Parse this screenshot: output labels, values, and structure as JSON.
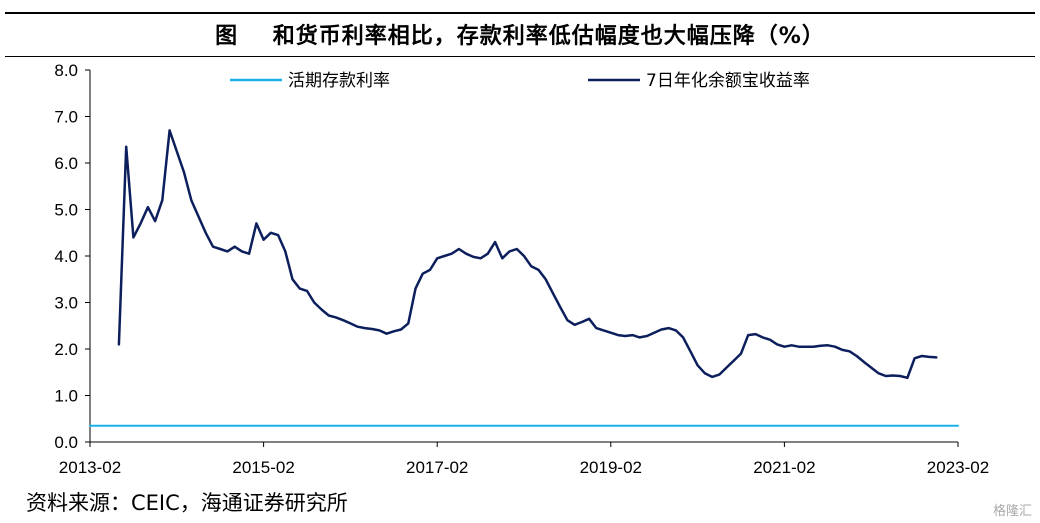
{
  "title": "图    和货币利率相比，存款利率低估幅度也大幅压降（%）",
  "source": "资料来源：CEIC，海通证券研究所",
  "watermark": "格隆汇",
  "chart_data": {
    "type": "line",
    "title": "图    和货币利率相比，存款利率低估幅度也大幅压降（%）",
    "xlabel": "",
    "ylabel": "",
    "ylim": [
      0,
      8
    ],
    "yticks": [
      "0.0",
      "1.0",
      "2.0",
      "3.0",
      "4.0",
      "5.0",
      "6.0",
      "7.0",
      "8.0"
    ],
    "xlim": [
      "2013-02",
      "2023-02"
    ],
    "xticks": [
      "2013-02",
      "2015-02",
      "2017-02",
      "2019-02",
      "2021-02",
      "2023-02"
    ],
    "grid": false,
    "legend": "top",
    "series": [
      {
        "name": "活期存款利率",
        "color": "#1ab0e8",
        "points": [
          [
            "2013-02",
            0.35
          ],
          [
            "2023-02",
            0.35
          ]
        ]
      },
      {
        "name": "7日年化余额宝收益率",
        "color": "#0c1f5c",
        "points": [
          [
            "2013-06",
            2.1
          ],
          [
            "2013-07",
            6.35
          ],
          [
            "2013-08",
            4.4
          ],
          [
            "2013-09",
            4.7
          ],
          [
            "2013-10",
            5.05
          ],
          [
            "2013-11",
            4.75
          ],
          [
            "2013-12",
            5.2
          ],
          [
            "2014-01",
            6.7
          ],
          [
            "2014-02",
            6.25
          ],
          [
            "2014-03",
            5.8
          ],
          [
            "2014-04",
            5.2
          ],
          [
            "2014-05",
            4.85
          ],
          [
            "2014-06",
            4.5
          ],
          [
            "2014-07",
            4.2
          ],
          [
            "2014-08",
            4.15
          ],
          [
            "2014-09",
            4.1
          ],
          [
            "2014-10",
            4.2
          ],
          [
            "2014-11",
            4.1
          ],
          [
            "2014-12",
            4.05
          ],
          [
            "2015-01",
            4.7
          ],
          [
            "2015-02",
            4.35
          ],
          [
            "2015-03",
            4.5
          ],
          [
            "2015-04",
            4.45
          ],
          [
            "2015-05",
            4.1
          ],
          [
            "2015-06",
            3.5
          ],
          [
            "2015-07",
            3.3
          ],
          [
            "2015-08",
            3.25
          ],
          [
            "2015-09",
            3.0
          ],
          [
            "2015-10",
            2.85
          ],
          [
            "2015-11",
            2.72
          ],
          [
            "2015-12",
            2.68
          ],
          [
            "2016-01",
            2.62
          ],
          [
            "2016-02",
            2.55
          ],
          [
            "2016-03",
            2.48
          ],
          [
            "2016-04",
            2.45
          ],
          [
            "2016-05",
            2.43
          ],
          [
            "2016-06",
            2.4
          ],
          [
            "2016-07",
            2.33
          ],
          [
            "2016-08",
            2.38
          ],
          [
            "2016-09",
            2.42
          ],
          [
            "2016-10",
            2.55
          ],
          [
            "2016-11",
            3.3
          ],
          [
            "2016-12",
            3.62
          ],
          [
            "2017-01",
            3.7
          ],
          [
            "2017-02",
            3.95
          ],
          [
            "2017-03",
            4.0
          ],
          [
            "2017-04",
            4.05
          ],
          [
            "2017-05",
            4.15
          ],
          [
            "2017-06",
            4.05
          ],
          [
            "2017-07",
            3.98
          ],
          [
            "2017-08",
            3.95
          ],
          [
            "2017-09",
            4.05
          ],
          [
            "2017-10",
            4.3
          ],
          [
            "2017-11",
            3.95
          ],
          [
            "2017-12",
            4.1
          ],
          [
            "2018-01",
            4.15
          ],
          [
            "2018-02",
            4.0
          ],
          [
            "2018-03",
            3.78
          ],
          [
            "2018-04",
            3.7
          ],
          [
            "2018-05",
            3.5
          ],
          [
            "2018-06",
            3.2
          ],
          [
            "2018-07",
            2.9
          ],
          [
            "2018-08",
            2.62
          ],
          [
            "2018-09",
            2.52
          ],
          [
            "2018-10",
            2.58
          ],
          [
            "2018-11",
            2.65
          ],
          [
            "2018-12",
            2.45
          ],
          [
            "2019-01",
            2.4
          ],
          [
            "2019-02",
            2.35
          ],
          [
            "2019-03",
            2.3
          ],
          [
            "2019-04",
            2.28
          ],
          [
            "2019-05",
            2.3
          ],
          [
            "2019-06",
            2.25
          ],
          [
            "2019-07",
            2.28
          ],
          [
            "2019-08",
            2.35
          ],
          [
            "2019-09",
            2.42
          ],
          [
            "2019-10",
            2.45
          ],
          [
            "2019-11",
            2.4
          ],
          [
            "2019-12",
            2.25
          ],
          [
            "2020-01",
            1.95
          ],
          [
            "2020-02",
            1.65
          ],
          [
            "2020-03",
            1.48
          ],
          [
            "2020-04",
            1.4
          ],
          [
            "2020-05",
            1.45
          ],
          [
            "2020-06",
            1.6
          ],
          [
            "2020-07",
            1.75
          ],
          [
            "2020-08",
            1.9
          ],
          [
            "2020-09",
            2.3
          ],
          [
            "2020-10",
            2.32
          ],
          [
            "2020-11",
            2.25
          ],
          [
            "2020-12",
            2.2
          ],
          [
            "2021-01",
            2.1
          ],
          [
            "2021-02",
            2.05
          ],
          [
            "2021-03",
            2.08
          ],
          [
            "2021-04",
            2.05
          ],
          [
            "2021-05",
            2.05
          ],
          [
            "2021-06",
            2.05
          ],
          [
            "2021-07",
            2.07
          ],
          [
            "2021-08",
            2.08
          ],
          [
            "2021-09",
            2.05
          ],
          [
            "2021-10",
            1.98
          ],
          [
            "2021-11",
            1.95
          ],
          [
            "2021-12",
            1.85
          ],
          [
            "2022-01",
            1.72
          ],
          [
            "2022-02",
            1.6
          ],
          [
            "2022-03",
            1.48
          ],
          [
            "2022-04",
            1.42
          ],
          [
            "2022-05",
            1.43
          ],
          [
            "2022-06",
            1.42
          ],
          [
            "2022-07",
            1.38
          ],
          [
            "2022-08",
            1.8
          ],
          [
            "2022-09",
            1.85
          ],
          [
            "2022-10",
            1.83
          ],
          [
            "2022-11",
            1.82
          ]
        ]
      }
    ]
  }
}
